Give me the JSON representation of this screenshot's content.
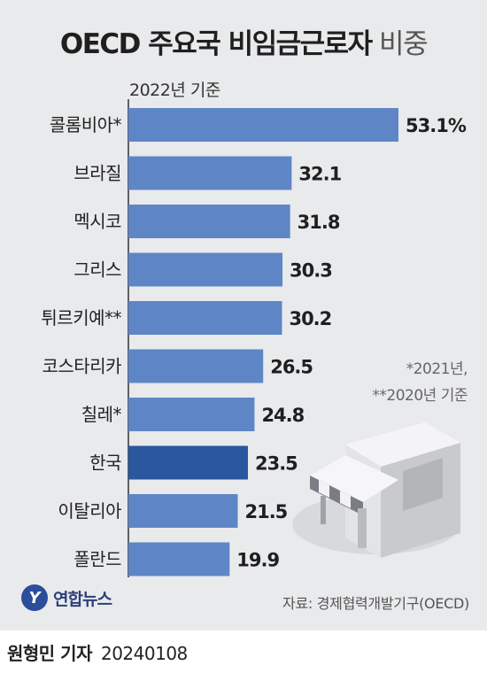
{
  "title_bold": "OECD 주요국 비임금근로자",
  "title_light": "비중",
  "subtitle": "2022년 기준",
  "note_lines": [
    "*2021년,",
    "**2020년 기준"
  ],
  "source": "자료: 경제협력개발기구(OECD)",
  "logo_text": "연합뉴스",
  "logo_mark": "Y",
  "byline_name": "원형민 기자",
  "byline_date": "20240108",
  "icon": "store-building-icon",
  "colors": {
    "bar": "#5e86c6",
    "highlight": "#2a579e",
    "background": "#e9eaec"
  },
  "chart_data": {
    "type": "bar",
    "orientation": "horizontal",
    "categories": [
      "콜롬비아*",
      "브라질",
      "멕시코",
      "그리스",
      "튀르키예**",
      "코스타리카",
      "칠레*",
      "한국",
      "이탈리아",
      "폴란드"
    ],
    "values": [
      53.1,
      32.1,
      31.8,
      30.3,
      30.2,
      26.5,
      24.8,
      23.5,
      21.5,
      19.9
    ],
    "value_labels": [
      "53.1%",
      "32.1",
      "31.8",
      "30.3",
      "30.2",
      "26.5",
      "24.8",
      "23.5",
      "21.5",
      "19.9"
    ],
    "highlight": "한국",
    "title": "OECD 주요국 비임금근로자 비중",
    "subtitle": "2022년 기준",
    "xlim": [
      0,
      53.1
    ],
    "grid": false,
    "legend": "none"
  }
}
